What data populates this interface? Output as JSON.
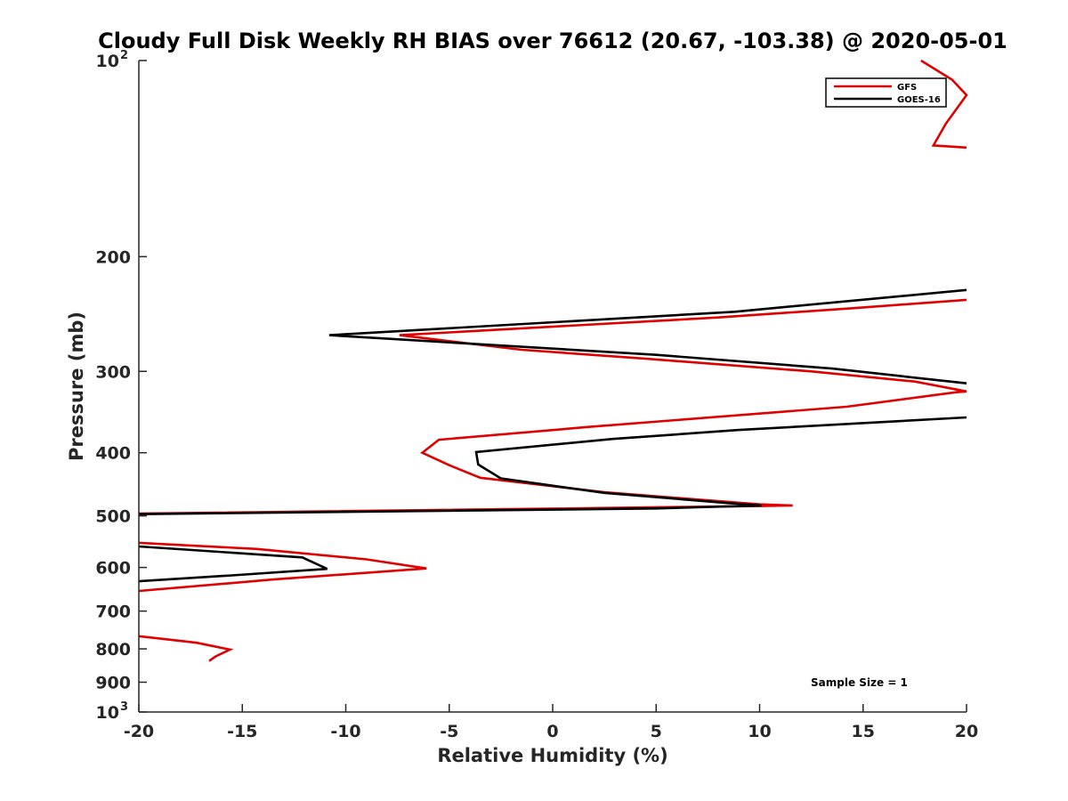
{
  "chart_data": {
    "type": "line",
    "title": "Cloudy Full Disk Weekly RH BIAS over 76612 (20.67, -103.38) @ 2020-05-01",
    "xlabel": "Relative Humidity (%)",
    "ylabel": "Pressure (mb)",
    "xlim": [
      -20,
      20
    ],
    "ylim": [
      100,
      1000
    ],
    "yscale": "log",
    "y_reversed": true,
    "x_ticks": [
      -20,
      -15,
      -10,
      -5,
      0,
      5,
      10,
      15,
      20
    ],
    "x_tick_labels": [
      "-20",
      "-15",
      "-10",
      "-5",
      "0",
      "5",
      "10",
      "15",
      "20"
    ],
    "y_ticks": [
      100,
      200,
      300,
      400,
      500,
      600,
      700,
      800,
      900,
      1000
    ],
    "y_tick_labels": [
      {
        "base": "10",
        "exp": "2"
      },
      {
        "base": "200",
        "exp": ""
      },
      {
        "base": "300",
        "exp": ""
      },
      {
        "base": "400",
        "exp": ""
      },
      {
        "base": "500",
        "exp": ""
      },
      {
        "base": "600",
        "exp": ""
      },
      {
        "base": "700",
        "exp": ""
      },
      {
        "base": "800",
        "exp": ""
      },
      {
        "base": "900",
        "exp": ""
      },
      {
        "base": "10",
        "exp": "3"
      }
    ],
    "grid": false,
    "legend_position": "top-right",
    "annotation": "Sample Size = 1",
    "series": [
      {
        "name": "GFS",
        "color": "#e00000",
        "segments": [
          [
            [
              17.8,
              100
            ],
            [
              19.3,
              107
            ],
            [
              20,
              113
            ],
            [
              19.0,
              125
            ],
            [
              18.4,
              135
            ],
            [
              20,
              136
            ]
          ],
          [
            [
              20,
              233
            ],
            [
              14.5,
              240
            ],
            [
              8,
              248
            ],
            [
              -7.4,
              264
            ],
            [
              -1.5,
              278
            ],
            [
              4.6,
              287
            ],
            [
              12.5,
              300
            ],
            [
              17.5,
              311
            ],
            [
              20,
              322
            ],
            [
              19.5,
              323
            ],
            [
              14.2,
              340
            ],
            [
              1.8,
              365
            ],
            [
              -5.5,
              382
            ],
            [
              -6.3,
              400
            ],
            [
              -5.0,
              418
            ],
            [
              -3.5,
              437
            ],
            [
              2.5,
              460
            ],
            [
              10.0,
              480
            ],
            [
              11.6,
              482
            ],
            [
              10.0,
              483
            ],
            [
              -20,
              496
            ]
          ],
          [
            [
              -20,
              550
            ],
            [
              -14.3,
              562
            ],
            [
              -9.0,
              583
            ],
            [
              -6.1,
              602
            ],
            [
              -13.5,
              626
            ],
            [
              -20,
              652
            ]
          ],
          [
            [
              -20,
              765
            ],
            [
              -17.2,
              783
            ],
            [
              -15.6,
              802
            ],
            [
              -16.3,
              822
            ],
            [
              -16.6,
              835
            ]
          ]
        ]
      },
      {
        "name": "GOES-16",
        "color": "#000000",
        "segments": [
          [
            [
              20,
              225
            ],
            [
              8.8,
              243
            ],
            [
              -10.8,
              264
            ],
            [
              5,
              283
            ],
            [
              13.5,
              297
            ],
            [
              20,
              313
            ]
          ],
          [
            [
              20,
              353
            ],
            [
              9.0,
              369
            ],
            [
              2.9,
              381
            ],
            [
              -3.7,
              399
            ],
            [
              -3.6,
              417
            ],
            [
              -2.5,
              438
            ],
            [
              2.5,
              461
            ],
            [
              8.5,
              478
            ],
            [
              10.1,
              482
            ],
            [
              5.0,
              487
            ],
            [
              -20,
              497
            ]
          ],
          [
            [
              -20,
              557
            ],
            [
              -12.1,
              579
            ],
            [
              -10.9,
              603
            ],
            [
              -15.5,
              617
            ],
            [
              -20,
              630
            ]
          ]
        ]
      }
    ]
  }
}
